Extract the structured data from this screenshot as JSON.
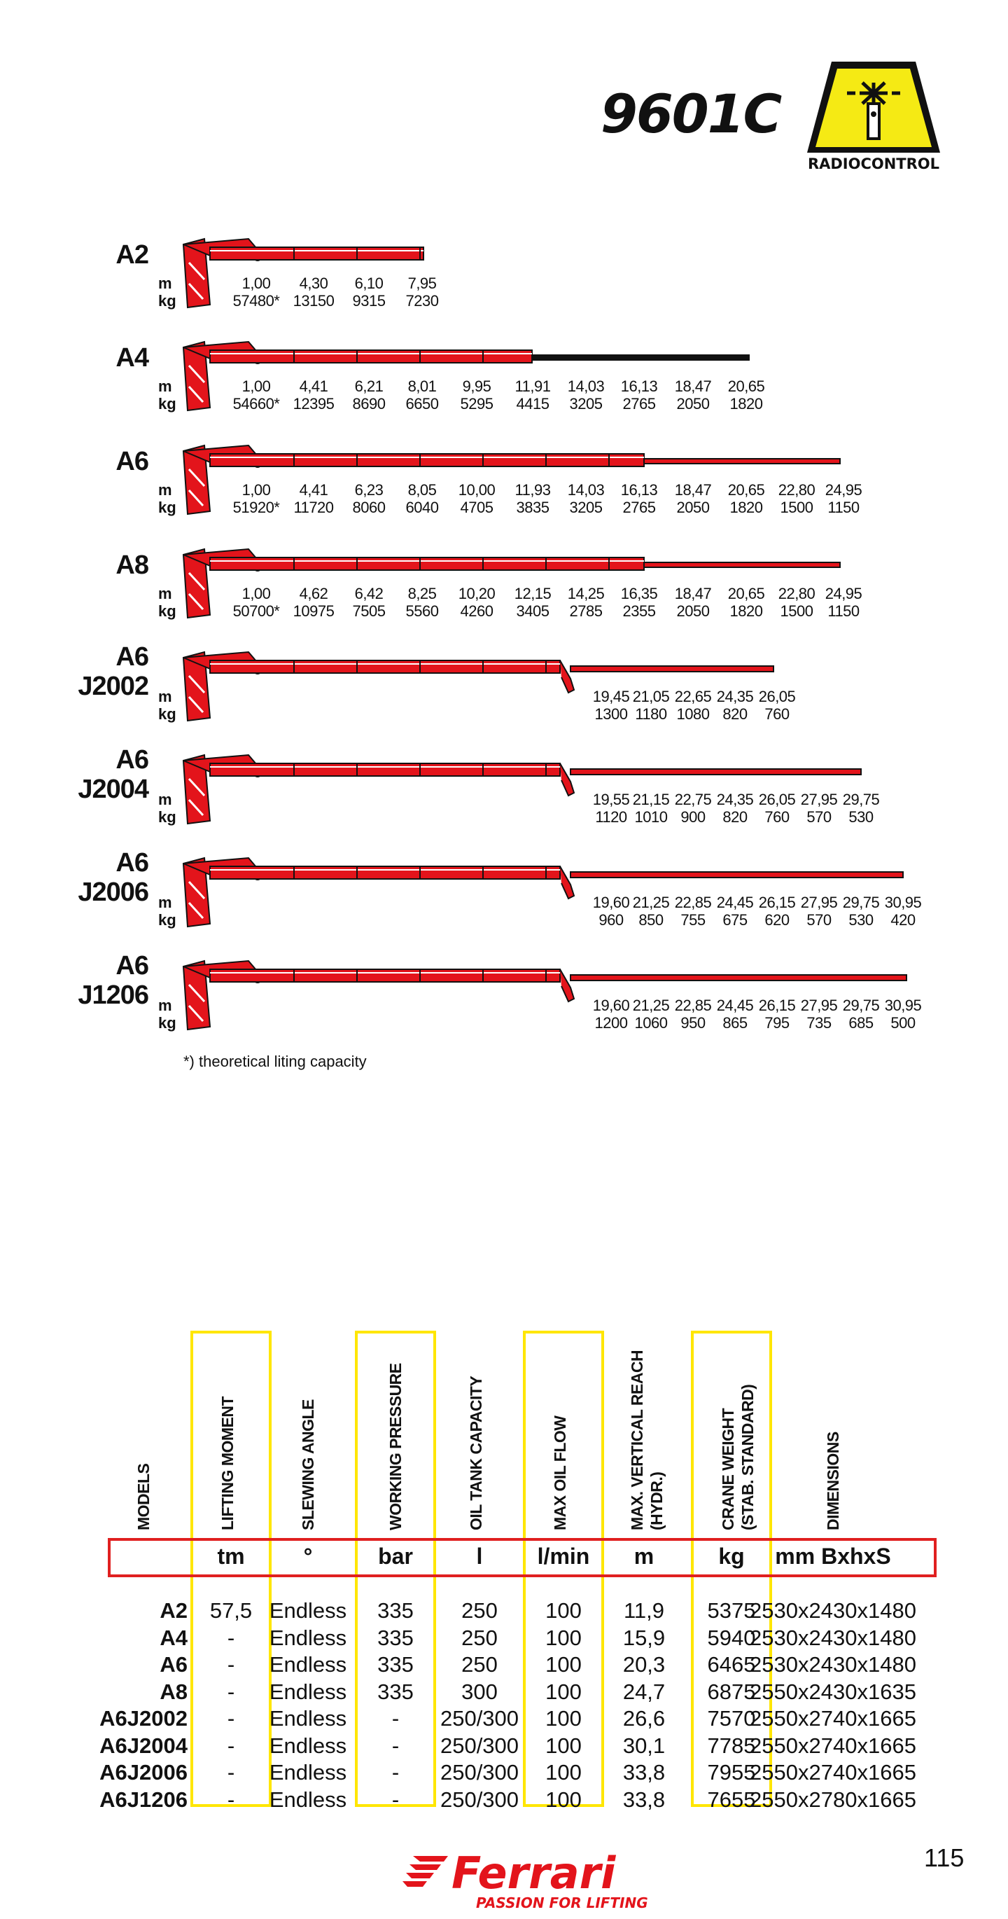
{
  "header": {
    "model": "9601C",
    "badge": "RADIOCONTROL"
  },
  "units": {
    "m": "m",
    "kg": "kg"
  },
  "cranes": [
    {
      "name": [
        "A2"
      ],
      "m": [
        "1,00",
        "4,30",
        "6,10",
        "7,95"
      ],
      "kg": [
        "57480*",
        "13150",
        "9315",
        "7230"
      ]
    },
    {
      "name": [
        "A4"
      ],
      "m": [
        "1,00",
        "4,41",
        "6,21",
        "8,01",
        "9,95",
        "11,91",
        "14,03",
        "16,13",
        "18,47",
        "20,65"
      ],
      "kg": [
        "54660*",
        "12395",
        "8690",
        "6650",
        "5295",
        "4415",
        "3205",
        "2765",
        "2050",
        "1820"
      ]
    },
    {
      "name": [
        "A6"
      ],
      "m": [
        "1,00",
        "4,41",
        "6,23",
        "8,05",
        "10,00",
        "11,93",
        "14,03",
        "16,13",
        "18,47",
        "20,65",
        "22,80",
        "24,95"
      ],
      "kg": [
        "51920*",
        "11720",
        "8060",
        "6040",
        "4705",
        "3835",
        "3205",
        "2765",
        "2050",
        "1820",
        "1500",
        "1150"
      ]
    },
    {
      "name": [
        "A8"
      ],
      "m": [
        "1,00",
        "4,62",
        "6,42",
        "8,25",
        "10,20",
        "12,15",
        "14,25",
        "16,35",
        "18,47",
        "20,65",
        "22,80",
        "24,95"
      ],
      "kg": [
        "50700*",
        "10975",
        "7505",
        "5560",
        "4260",
        "3405",
        "2785",
        "2355",
        "2050",
        "1820",
        "1500",
        "1150"
      ]
    },
    {
      "name": [
        "A6",
        "J2002"
      ],
      "m": [
        "19,45",
        "21,05",
        "22,65",
        "24,35",
        "26,05"
      ],
      "kg": [
        "1300",
        "1180",
        "1080",
        "820",
        "760"
      ]
    },
    {
      "name": [
        "A6",
        "J2004"
      ],
      "m": [
        "19,55",
        "21,15",
        "22,75",
        "24,35",
        "26,05",
        "27,95",
        "29,75"
      ],
      "kg": [
        "1120",
        "1010",
        "900",
        "820",
        "760",
        "570",
        "530"
      ]
    },
    {
      "name": [
        "A6",
        "J2006"
      ],
      "m": [
        "19,60",
        "21,25",
        "22,85",
        "24,45",
        "26,15",
        "27,95",
        "29,75",
        "30,95"
      ],
      "kg": [
        "960",
        "850",
        "755",
        "675",
        "620",
        "570",
        "530",
        "420"
      ]
    },
    {
      "name": [
        "A6",
        "J1206"
      ],
      "m": [
        "19,60",
        "21,25",
        "22,85",
        "24,45",
        "26,15",
        "27,95",
        "29,75",
        "30,95"
      ],
      "kg": [
        "1200",
        "1060",
        "950",
        "865",
        "795",
        "735",
        "685",
        "500"
      ]
    }
  ],
  "footnote": "*) theoretical liting capacity",
  "table": {
    "headers": [
      "MODELS",
      "LIFTING MOMENT",
      "SLEWING ANGLE",
      "WORKING PRESSURE",
      "OIL TANK CAPACITY",
      "MAX OIL FLOW",
      "MAX. VERTICAL REACH",
      "(HYDR.)",
      "CRANE WEIGHT",
      "(STAB. STANDARD)",
      "DIMENSIONS"
    ],
    "units": [
      "tm",
      "°",
      "bar",
      "l",
      "l/min",
      "m",
      "kg",
      "mm BxhxS"
    ],
    "rows": [
      [
        "A2",
        "57,5",
        "Endless",
        "335",
        "250",
        "100",
        "11,9",
        "5375",
        "2530x2430x1480"
      ],
      [
        "A4",
        "-",
        "Endless",
        "335",
        "250",
        "100",
        "15,9",
        "5940",
        "2530x2430x1480"
      ],
      [
        "A6",
        "-",
        "Endless",
        "335",
        "250",
        "100",
        "20,3",
        "6465",
        "2530x2430x1480"
      ],
      [
        "A8",
        "-",
        "Endless",
        "335",
        "300",
        "100",
        "24,7",
        "6875",
        "2550x2430x1635"
      ],
      [
        "A6J2002",
        "-",
        "Endless",
        "-",
        "250/300",
        "100",
        "26,6",
        "7570",
        "2550x2740x1665"
      ],
      [
        "A6J2004",
        "-",
        "Endless",
        "-",
        "250/300",
        "100",
        "30,1",
        "7785",
        "2550x2740x1665"
      ],
      [
        "A6J2006",
        "-",
        "Endless",
        "-",
        "250/300",
        "100",
        "33,8",
        "7955",
        "2550x2740x1665"
      ],
      [
        "A6J1206",
        "-",
        "Endless",
        "-",
        "250/300",
        "100",
        "33,8",
        "7655",
        "2550x2780x1665"
      ]
    ]
  },
  "brand": {
    "name": "Ferrari",
    "slogan": "PASSION FOR LIFTING"
  },
  "page_number": "115",
  "colors": {
    "crane_red": "#e3141b",
    "highlight_yellow": "#ffe600",
    "unit_box_red": "#e02020"
  }
}
